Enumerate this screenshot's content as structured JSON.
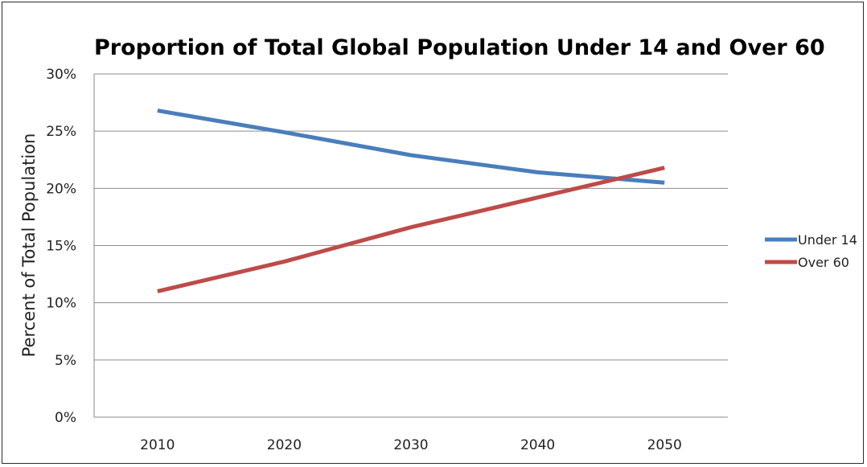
{
  "chart_data": {
    "type": "line",
    "title": "Proportion of Total Global Population Under 14 and Over 60",
    "xlabel": "",
    "ylabel": "Percent  of  Total  Population",
    "categories": [
      "2010",
      "2020",
      "2030",
      "2040",
      "2050"
    ],
    "series": [
      {
        "name": "Under 14",
        "color": "#4A7EBB",
        "values": [
          26.8,
          24.9,
          22.9,
          21.4,
          20.5
        ]
      },
      {
        "name": "Over 60",
        "color": "#BE4B48",
        "values": [
          11.0,
          13.6,
          16.6,
          19.2,
          21.8
        ]
      }
    ],
    "ylim": [
      0,
      30
    ],
    "yticks": [
      "0%",
      "5%",
      "10%",
      "15%",
      "20%",
      "25%",
      "30%"
    ],
    "ytick_values": [
      0,
      5,
      10,
      15,
      20,
      25,
      30
    ],
    "grid": "horizontal",
    "legend_position": "right"
  }
}
